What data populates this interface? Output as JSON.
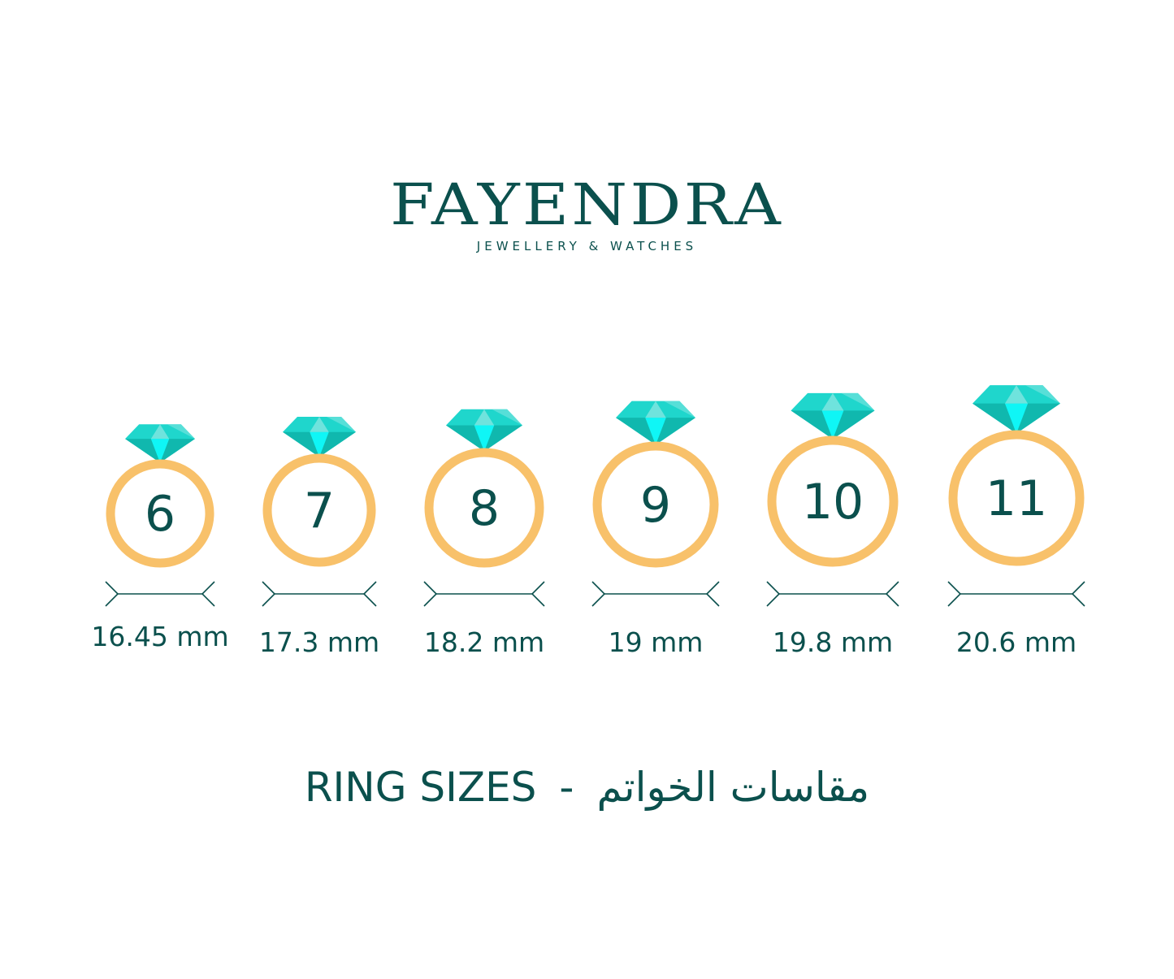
{
  "brand": {
    "name": "FAYENDRA",
    "tagline": "JEWELLERY & WATCHES"
  },
  "colors": {
    "text": "#0b504d",
    "ring": "#f8c16a",
    "gem_light": "#1fd6cc",
    "gem_bright": "#0ff6f6",
    "gem_dark": "#10b8ae",
    "gem_pale": "#6fe3dd"
  },
  "rings": [
    {
      "size": "6",
      "diameter": "16.45 mm"
    },
    {
      "size": "7",
      "diameter": "17.3 mm"
    },
    {
      "size": "8",
      "diameter": "18.2 mm"
    },
    {
      "size": "9",
      "diameter": "19 mm"
    },
    {
      "size": "10",
      "diameter": "19.8 mm"
    },
    {
      "size": "11",
      "diameter": "20.6 mm"
    }
  ],
  "title": {
    "english": "RING SIZES",
    "separator": "-",
    "arabic": "مقاسات الخواتم"
  }
}
